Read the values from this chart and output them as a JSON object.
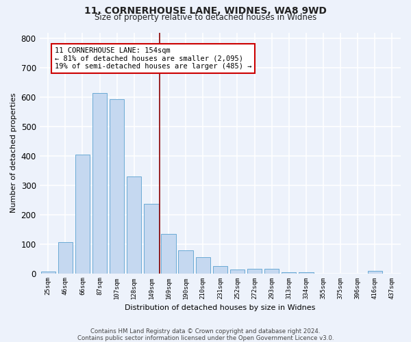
{
  "title_line1": "11, CORNERHOUSE LANE, WIDNES, WA8 9WD",
  "title_line2": "Size of property relative to detached houses in Widnes",
  "xlabel": "Distribution of detached houses by size in Widnes",
  "ylabel": "Number of detached properties",
  "footer_line1": "Contains HM Land Registry data © Crown copyright and database right 2024.",
  "footer_line2": "Contains public sector information licensed under the Open Government Licence v3.0.",
  "bar_labels": [
    "25sqm",
    "46sqm",
    "66sqm",
    "87sqm",
    "107sqm",
    "128sqm",
    "149sqm",
    "169sqm",
    "190sqm",
    "210sqm",
    "231sqm",
    "252sqm",
    "272sqm",
    "293sqm",
    "313sqm",
    "334sqm",
    "355sqm",
    "375sqm",
    "396sqm",
    "416sqm",
    "437sqm"
  ],
  "bar_values": [
    7,
    107,
    405,
    615,
    592,
    330,
    237,
    133,
    78,
    55,
    25,
    12,
    15,
    15,
    4,
    3,
    0,
    0,
    0,
    8,
    0
  ],
  "bar_color": "#c5d8f0",
  "bar_edge_color": "#6aaad4",
  "background_color": "#edf2fb",
  "grid_color": "#ffffff",
  "vline_color": "#8b0000",
  "annotation_text": "11 CORNERHOUSE LANE: 154sqm\n← 81% of detached houses are smaller (2,095)\n19% of semi-detached houses are larger (485) →",
  "annotation_box_color": "#ffffff",
  "annotation_box_edge": "#cc0000",
  "ylim": [
    0,
    820
  ],
  "yticks": [
    0,
    100,
    200,
    300,
    400,
    500,
    600,
    700,
    800
  ]
}
